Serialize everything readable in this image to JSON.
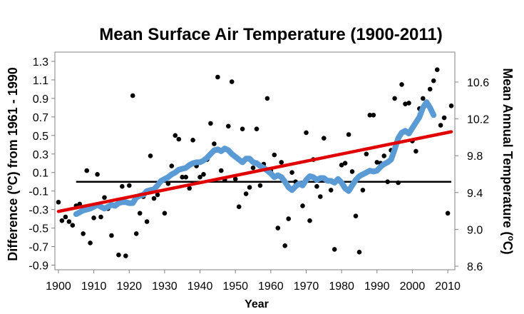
{
  "chart_data": {
    "type": "scatter",
    "title": "Mean Surface Air Temperature (1900-2011)",
    "xlabel": "Year",
    "ylabel": "Difference  (°C) from 1961 - 1990",
    "ylabel_parts": [
      "Difference  (",
      "o",
      "C) from 1961 - 1990"
    ],
    "y2label": "Mean Annual Temperature (°C)",
    "y2label_parts": [
      "Mean Annual Temperature (",
      "o",
      "C)"
    ],
    "xlim": [
      1899,
      2012
    ],
    "ylim": [
      -0.95,
      1.4
    ],
    "y2lim": [
      8.6,
      10.6
    ],
    "x_ticks": [
      "1900",
      "1910",
      "1920",
      "1930",
      "1940",
      "1950",
      "1960",
      "1970",
      "1980",
      "1990",
      "2000",
      "2010"
    ],
    "y_ticks": [
      "1.3",
      "1.1",
      "0.9",
      "0.7",
      "0.5",
      "0.3",
      "0.1",
      "-0.1",
      "-0.3",
      "-0.5",
      "-0.7",
      "-0.9"
    ],
    "y2_ticks": [
      "10.6",
      "10.2",
      "9.8",
      "9.4",
      "9.0",
      "8.6"
    ],
    "grid": false,
    "baseline": 0.0,
    "series": [
      {
        "kind": "points",
        "color": "#000000",
        "x": [
          1900,
          1901,
          1902,
          1903,
          1904,
          1905,
          1906,
          1907,
          1908,
          1909,
          1910,
          1911,
          1912,
          1913,
          1914,
          1915,
          1916,
          1917,
          1918,
          1919,
          1920,
          1921,
          1922,
          1923,
          1924,
          1925,
          1926,
          1927,
          1928,
          1929,
          1930,
          1931,
          1932,
          1933,
          1934,
          1935,
          1936,
          1937,
          1938,
          1939,
          1940,
          1941,
          1942,
          1943,
          1944,
          1945,
          1946,
          1947,
          1948,
          1949,
          1950,
          1951,
          1952,
          1953,
          1954,
          1955,
          1956,
          1957,
          1958,
          1959,
          1960,
          1961,
          1962,
          1963,
          1964,
          1965,
          1966,
          1967,
          1968,
          1969,
          1970,
          1971,
          1972,
          1973,
          1974,
          1975,
          1976,
          1977,
          1978,
          1979,
          1980,
          1981,
          1982,
          1983,
          1984,
          1985,
          1986,
          1987,
          1988,
          1989,
          1990,
          1991,
          1992,
          1993,
          1994,
          1995,
          1996,
          1997,
          1998,
          1999,
          2000,
          2001,
          2002,
          2003,
          2004,
          2005,
          2006,
          2007,
          2008,
          2009,
          2010,
          2011
        ],
        "y": [
          -0.22,
          -0.42,
          -0.38,
          -0.43,
          -0.47,
          -0.26,
          -0.24,
          -0.56,
          0.12,
          -0.66,
          -0.39,
          0.08,
          -0.38,
          -0.17,
          -0.29,
          -0.58,
          -0.25,
          -0.79,
          -0.05,
          -0.8,
          -0.04,
          0.93,
          -0.56,
          -0.34,
          -0.16,
          -0.43,
          0.28,
          -0.18,
          -0.14,
          0.0,
          -0.34,
          -0.02,
          0.17,
          0.5,
          0.46,
          0.05,
          0.05,
          -0.07,
          0.45,
          0.17,
          0.05,
          0.08,
          0.24,
          0.63,
          0.41,
          1.13,
          0.12,
          0.02,
          0.6,
          1.08,
          0.03,
          -0.27,
          0.57,
          -0.13,
          -0.06,
          0.15,
          0.57,
          -0.04,
          0.19,
          0.9,
          0.12,
          0.29,
          -0.5,
          0.21,
          -0.69,
          -0.4,
          0.1,
          0.0,
          -0.03,
          -0.26,
          0.53,
          -0.42,
          0.24,
          -0.05,
          -0.16,
          0.47,
          0.01,
          -0.09,
          -0.73,
          0.02,
          0.18,
          0.2,
          0.51,
          0.11,
          -0.37,
          -0.76,
          -0.09,
          0.3,
          0.72,
          0.72,
          0.21,
          0.2,
          0.28,
          0.0,
          0.34,
          0.9,
          -0.01,
          1.05,
          0.84,
          0.85,
          0.44,
          0.33,
          0.79,
          0.9,
          0.83,
          1.0,
          1.09,
          1.21,
          0.61,
          0.69,
          -0.34,
          0.82
        ]
      },
      {
        "kind": "smoothed",
        "color": "#5b9bd5",
        "x": [
          1905,
          1906,
          1907,
          1908,
          1909,
          1910,
          1911,
          1912,
          1913,
          1914,
          1915,
          1916,
          1917,
          1918,
          1919,
          1920,
          1921,
          1922,
          1923,
          1924,
          1925,
          1926,
          1927,
          1928,
          1929,
          1930,
          1931,
          1932,
          1933,
          1934,
          1935,
          1936,
          1937,
          1938,
          1939,
          1940,
          1941,
          1942,
          1943,
          1944,
          1945,
          1946,
          1947,
          1948,
          1949,
          1950,
          1951,
          1952,
          1953,
          1954,
          1955,
          1956,
          1957,
          1958,
          1959,
          1960,
          1961,
          1962,
          1963,
          1964,
          1965,
          1966,
          1967,
          1968,
          1969,
          1970,
          1971,
          1972,
          1973,
          1974,
          1975,
          1976,
          1977,
          1978,
          1979,
          1980,
          1981,
          1982,
          1983,
          1984,
          1985,
          1986,
          1987,
          1988,
          1989,
          1990,
          1991,
          1992,
          1993,
          1994,
          1995,
          1996,
          1997,
          1998,
          1999,
          2000,
          2001,
          2002,
          2003,
          2004,
          2005,
          2006
        ],
        "y": [
          -0.35,
          -0.33,
          -0.31,
          -0.3,
          -0.29,
          -0.27,
          -0.25,
          -0.27,
          -0.29,
          -0.27,
          -0.25,
          -0.26,
          -0.23,
          -0.22,
          -0.22,
          -0.23,
          -0.23,
          -0.17,
          -0.15,
          -0.14,
          -0.1,
          -0.09,
          -0.08,
          -0.04,
          0.01,
          0.03,
          0.05,
          0.08,
          0.1,
          0.13,
          0.14,
          0.15,
          0.18,
          0.2,
          0.21,
          0.21,
          0.23,
          0.26,
          0.3,
          0.34,
          0.35,
          0.33,
          0.36,
          0.34,
          0.3,
          0.27,
          0.24,
          0.21,
          0.25,
          0.25,
          0.21,
          0.2,
          0.17,
          0.15,
          0.12,
          0.09,
          0.05,
          0.07,
          0.05,
          0.0,
          -0.06,
          -0.09,
          -0.05,
          -0.02,
          -0.04,
          0.02,
          0.06,
          0.05,
          0.02,
          0.04,
          0.04,
          0.01,
          0.01,
          -0.01,
          0.03,
          -0.01,
          -0.07,
          -0.1,
          -0.04,
          0.02,
          0.06,
          0.08,
          0.1,
          0.12,
          0.11,
          0.12,
          0.16,
          0.19,
          0.21,
          0.24,
          0.35,
          0.47,
          0.53,
          0.55,
          0.52,
          0.58,
          0.64,
          0.7,
          0.8,
          0.86,
          0.8,
          0.72
        ]
      },
      {
        "kind": "trend",
        "color": "#e00000",
        "x": [
          1900,
          2011
        ],
        "y": [
          -0.32,
          0.54
        ]
      }
    ]
  }
}
